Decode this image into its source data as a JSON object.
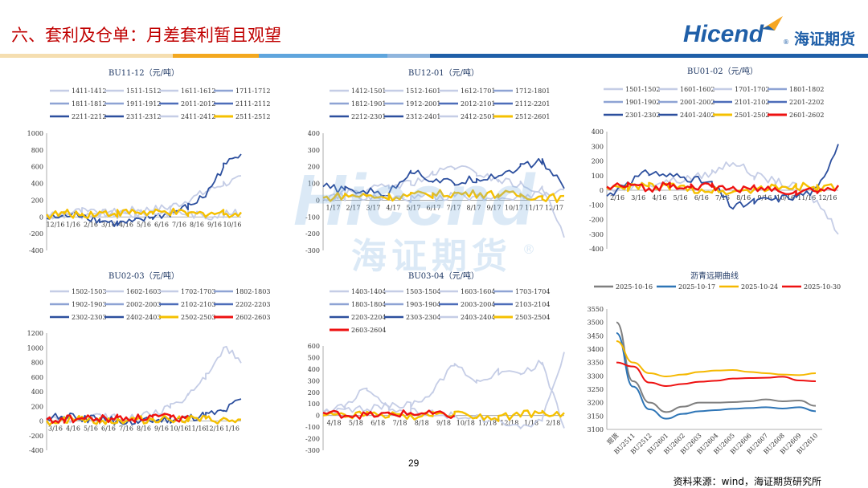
{
  "header": {
    "title": "六、套利及仓单：月差套利暂且观望"
  },
  "logo": {
    "brand": "Hicend",
    "cn": "海证期货",
    "mark": "®"
  },
  "watermark": {
    "brand": "Hicend",
    "cn": "海证期货",
    "mark": "®"
  },
  "footer": {
    "page": "29",
    "source": "资料来源：wind，海证期货研究所"
  },
  "palette": {
    "yellow": "#f5c000",
    "red": "#ee1111",
    "blue_light": "#c5cde6",
    "blue_mid": "#8ea3d4",
    "blue": "#4d6db9",
    "blue_dark": "#2c4f9e",
    "grey": "#7f7f7f",
    "blue_std": "#2e75b6",
    "orange": "#f5b800"
  },
  "chart_data": [
    {
      "type": "line",
      "title": "BU11-12（元/吨）",
      "legend": [
        "1411-1412",
        "1511-1512",
        "1611-1612",
        "1711-1712",
        "1811-1812",
        "1911-1912",
        "2011-2012",
        "2111-2112",
        "2211-2212",
        "2311-2312",
        "2411-2412",
        "2511-2512"
      ],
      "xticks": [
        "12/16",
        "1/16",
        "2/16",
        "3/16",
        "4/16",
        "5/16",
        "6/16",
        "7/16",
        "8/16",
        "9/16",
        "10/16"
      ],
      "yticks": [
        1000,
        800,
        600,
        400,
        200,
        0,
        -200,
        -400
      ],
      "ylim": [
        -400,
        1000
      ],
      "series": [
        {
          "name": "2511-2512",
          "values": [
            20,
            40,
            30,
            50,
            45,
            60,
            40,
            55,
            30,
            40,
            50,
            35
          ]
        },
        {
          "name": "2411-2412",
          "values": [
            30,
            50,
            70,
            40,
            20,
            30,
            50,
            60,
            40,
            10,
            30,
            50
          ]
        },
        {
          "name": "2211-2212",
          "values": [
            -20,
            10,
            30,
            -40,
            -80,
            -60,
            0,
            40,
            120,
            260,
            600,
            780
          ]
        },
        {
          "name": "1411-1412",
          "values": [
            10,
            30,
            20,
            40,
            60,
            80,
            90,
            120,
            200,
            300,
            400,
            450
          ]
        }
      ]
    },
    {
      "type": "line",
      "title": "BU12-01（元/吨）",
      "legend": [
        "1412-1501",
        "1512-1601",
        "1612-1701",
        "1712-1801",
        "1812-1901",
        "1912-2001",
        "2012-2101",
        "2112-2201",
        "2212-2301",
        "2312-2401",
        "2412-2501",
        "2512-2601"
      ],
      "xticks": [
        "1/17",
        "2/17",
        "3/17",
        "4/17",
        "5/17",
        "6/17",
        "7/17",
        "8/17",
        "9/17",
        "10/17",
        "11/17",
        "12/17"
      ],
      "yticks": [
        400,
        300,
        200,
        100,
        0,
        -100,
        -200,
        -300
      ],
      "ylim": [
        -300,
        400
      ],
      "series": [
        {
          "name": "2512-2601",
          "values": [
            10,
            30,
            25,
            20,
            30,
            35,
            40,
            38,
            35,
            30,
            20,
            10
          ]
        },
        {
          "name": "2412-2501",
          "values": [
            5,
            20,
            15,
            10,
            10,
            20,
            25,
            20,
            15,
            30,
            40,
            60
          ]
        },
        {
          "name": "2212-2301",
          "values": [
            80,
            60,
            50,
            40,
            180,
            120,
            100,
            130,
            150,
            200,
            230,
            80
          ]
        },
        {
          "name": "1412-1501",
          "values": [
            10,
            40,
            60,
            80,
            100,
            150,
            200,
            160,
            120,
            90,
            60,
            -200
          ]
        }
      ]
    },
    {
      "type": "line",
      "title": "BU01-02（元/吨）",
      "legend": [
        "1501-1502",
        "1601-1602",
        "1701-1702",
        "1801-1802",
        "1901-1902",
        "2001-2002",
        "2101-2102",
        "2201-2202",
        "2301-2302",
        "2401-2402",
        "2501-2502",
        "2601-2602"
      ],
      "xticks": [
        "2/16",
        "3/16",
        "4/16",
        "5/16",
        "6/16",
        "7/16",
        "8/16",
        "9/16",
        "10/16",
        "11/16",
        "12/16"
      ],
      "yticks": [
        400,
        300,
        200,
        100,
        0,
        -100,
        -200,
        -300,
        -400
      ],
      "ylim": [
        -400,
        400
      ],
      "series": [
        {
          "name": "2601-2602",
          "values": [
            20,
            30,
            10,
            40,
            30,
            20,
            15,
            10,
            5,
            -10,
            0,
            10
          ]
        },
        {
          "name": "2501-2502",
          "values": [
            10,
            20,
            30,
            20,
            10,
            0,
            -10,
            10,
            20,
            30,
            10,
            20
          ]
        },
        {
          "name": "2301-2302",
          "values": [
            -40,
            60,
            120,
            100,
            80,
            40,
            -120,
            -80,
            -60,
            -40,
            0,
            320
          ]
        },
        {
          "name": "1501-1502",
          "values": [
            0,
            20,
            40,
            60,
            80,
            120,
            200,
            100,
            60,
            20,
            -80,
            -280
          ]
        }
      ]
    },
    {
      "type": "line",
      "title": "BU02-03（元/吨）",
      "legend": [
        "1502-1503",
        "1602-1603",
        "1702-1703",
        "1802-1803",
        "1902-1903",
        "2002-2003",
        "2102-2103",
        "2202-2203",
        "2302-2303",
        "2402-2403",
        "2502-2503",
        "2602-2603"
      ],
      "xticks": [
        "3/16",
        "4/16",
        "5/16",
        "6/16",
        "7/16",
        "8/16",
        "9/16",
        "10/16",
        "11/16",
        "12/16",
        "1/16"
      ],
      "yticks": [
        1200,
        1000,
        800,
        600,
        400,
        200,
        0,
        -200,
        -400
      ],
      "ylim": [
        -400,
        1200
      ],
      "series": [
        {
          "name": "2602-2603",
          "values": [
            10,
            20,
            30,
            20,
            40,
            30,
            50,
            40,
            30,
            null,
            null,
            null
          ]
        },
        {
          "name": "2502-2503",
          "values": [
            0,
            10,
            20,
            10,
            0,
            10,
            20,
            30,
            20,
            10,
            0,
            -10
          ]
        },
        {
          "name": "2302-2303",
          "values": [
            40,
            60,
            30,
            20,
            0,
            -20,
            0,
            20,
            40,
            80,
            120,
            300
          ]
        },
        {
          "name": "1502-1503",
          "values": [
            20,
            30,
            40,
            60,
            50,
            80,
            100,
            200,
            350,
            600,
            1000,
            820
          ]
        }
      ]
    },
    {
      "type": "line",
      "title": "BU03-04（元/吨）",
      "legend": [
        "1403-1404",
        "1503-1504",
        "1603-1604",
        "1703-1704",
        "1803-1804",
        "1903-1904",
        "2003-2004",
        "2103-2104",
        "2203-2204",
        "2303-2304",
        "2403-2404",
        "2503-2504",
        "2603-2604"
      ],
      "xticks": [
        "4/18",
        "5/18",
        "6/18",
        "7/18",
        "8/18",
        "9/18",
        "10/18",
        "11/18",
        "12/18",
        "1/18",
        "2/18"
      ],
      "yticks": [
        600,
        500,
        400,
        300,
        200,
        100,
        0,
        -100,
        -200,
        -300
      ],
      "ylim": [
        -300,
        600
      ],
      "series": [
        {
          "name": "2603-2604",
          "values": [
            20,
            10,
            0,
            10,
            20,
            10,
            0,
            null,
            null,
            null,
            null,
            null
          ]
        },
        {
          "name": "2503-2504",
          "values": [
            0,
            -10,
            10,
            0,
            -10,
            10,
            20,
            0,
            -20,
            10,
            20,
            0
          ]
        },
        {
          "name": "2403-2404",
          "values": [
            30,
            80,
            240,
            60,
            40,
            20,
            0,
            -20,
            -60,
            -100,
            -40,
            540
          ]
        },
        {
          "name": "1403-1404",
          "values": [
            20,
            40,
            60,
            80,
            100,
            200,
            450,
            300,
            380,
            360,
            460,
            -100
          ]
        }
      ]
    },
    {
      "type": "line",
      "title": "沥青远期曲线",
      "legend": [
        "2025-10-16",
        "2025-10-17",
        "2025-10-24",
        "2025-10-30"
      ],
      "categories": [
        "现货",
        "BU2511",
        "BU2512",
        "BU2601",
        "BU2602",
        "BU2603",
        "BU2604",
        "BU2605",
        "BU2606",
        "BU2607",
        "BU2608",
        "BU2609",
        "BU2610"
      ],
      "yticks": [
        3550,
        3500,
        3450,
        3400,
        3350,
        3300,
        3250,
        3200,
        3150,
        3100
      ],
      "ylim": [
        3100,
        3550
      ],
      "series": [
        {
          "name": "2025-10-16",
          "values": [
            3500,
            3280,
            3200,
            3165,
            3185,
            3200,
            3200,
            3202,
            3205,
            3212,
            3205,
            3208,
            3188
          ]
        },
        {
          "name": "2025-10-17",
          "values": [
            3460,
            3260,
            3175,
            3140,
            3158,
            3168,
            3172,
            3177,
            3180,
            3183,
            3178,
            3183,
            3168
          ]
        },
        {
          "name": "2025-10-24",
          "values": [
            3430,
            3350,
            3310,
            3298,
            3305,
            3315,
            3320,
            3322,
            3315,
            3310,
            3305,
            3303,
            3310
          ]
        },
        {
          "name": "2025-10-30",
          "values": [
            3350,
            3335,
            3275,
            3262,
            3270,
            3278,
            3282,
            3290,
            3292,
            3293,
            3297,
            3283,
            3280
          ]
        }
      ]
    }
  ]
}
